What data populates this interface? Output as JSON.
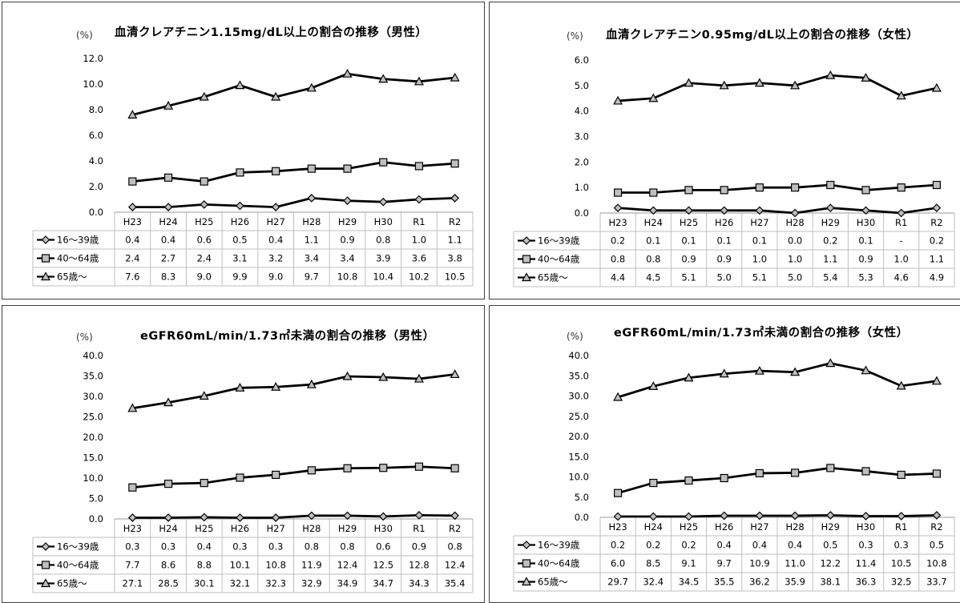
{
  "chart_data": [
    {
      "type": "line",
      "title": "血清クレアチニン1.15mg/dL以上の割合の推移（男性）",
      "unit": "(%)",
      "categories": [
        "H23",
        "H24",
        "H25",
        "H26",
        "H27",
        "H28",
        "H29",
        "H30",
        "R1",
        "R2"
      ],
      "ylim": [
        0,
        12
      ],
      "yticks": [
        "0.0",
        "2.0",
        "4.0",
        "6.0",
        "8.0",
        "10.0",
        "12.0"
      ],
      "series": [
        {
          "name": "16～39歳",
          "marker": "diamond",
          "values": [
            0.4,
            0.4,
            0.6,
            0.5,
            0.4,
            1.1,
            0.9,
            0.8,
            1.0,
            1.1
          ],
          "labels": [
            "0.4",
            "0.4",
            "0.6",
            "0.5",
            "0.4",
            "1.1",
            "0.9",
            "0.8",
            "1.0",
            "1.1"
          ]
        },
        {
          "name": "40～64歳",
          "marker": "square",
          "values": [
            2.4,
            2.7,
            2.4,
            3.1,
            3.2,
            3.4,
            3.4,
            3.9,
            3.6,
            3.8
          ],
          "labels": [
            "2.4",
            "2.7",
            "2.4",
            "3.1",
            "3.2",
            "3.4",
            "3.4",
            "3.9",
            "3.6",
            "3.8"
          ]
        },
        {
          "name": "65歳～",
          "marker": "triangle",
          "values": [
            7.6,
            8.3,
            9.0,
            9.9,
            9.0,
            9.7,
            10.8,
            10.4,
            10.2,
            10.5
          ],
          "labels": [
            "7.6",
            "8.3",
            "9.0",
            "9.9",
            "9.0",
            "9.7",
            "10.8",
            "10.4",
            "10.2",
            "10.5"
          ]
        }
      ]
    },
    {
      "type": "line",
      "title": "血清クレアチニン0.95mg/dL以上の割合の推移（女性）",
      "unit": "(%)",
      "categories": [
        "H23",
        "H24",
        "H25",
        "H26",
        "H27",
        "H28",
        "H29",
        "H30",
        "R1",
        "R2"
      ],
      "ylim": [
        0,
        6
      ],
      "yticks": [
        "0.0",
        "1.0",
        "2.0",
        "3.0",
        "4.0",
        "5.0",
        "6.0"
      ],
      "series": [
        {
          "name": "16～39歳",
          "marker": "diamond",
          "values": [
            0.2,
            0.1,
            0.1,
            0.1,
            0.1,
            0.0,
            0.2,
            0.1,
            0.0,
            0.2
          ],
          "labels": [
            "0.2",
            "0.1",
            "0.1",
            "0.1",
            "0.1",
            "0.0",
            "0.2",
            "0.1",
            "-",
            "0.2"
          ]
        },
        {
          "name": "40～64歳",
          "marker": "square",
          "values": [
            0.8,
            0.8,
            0.9,
            0.9,
            1.0,
            1.0,
            1.1,
            0.9,
            1.0,
            1.1
          ],
          "labels": [
            "0.8",
            "0.8",
            "0.9",
            "0.9",
            "1.0",
            "1.0",
            "1.1",
            "0.9",
            "1.0",
            "1.1"
          ]
        },
        {
          "name": "65歳～",
          "marker": "triangle",
          "values": [
            4.4,
            4.5,
            5.1,
            5.0,
            5.1,
            5.0,
            5.4,
            5.3,
            4.6,
            4.9
          ],
          "labels": [
            "4.4",
            "4.5",
            "5.1",
            "5.0",
            "5.1",
            "5.0",
            "5.4",
            "5.3",
            "4.6",
            "4.9"
          ]
        }
      ]
    },
    {
      "type": "line",
      "title": "eGFR60mL/min/1.73㎡未満の割合の推移（男性）",
      "unit": "(%)",
      "categories": [
        "H23",
        "H24",
        "H25",
        "H26",
        "H27",
        "H28",
        "H29",
        "H30",
        "R1",
        "R2"
      ],
      "ylim": [
        0,
        40
      ],
      "yticks": [
        "0.0",
        "5.0",
        "10.0",
        "15.0",
        "20.0",
        "25.0",
        "30.0",
        "35.0",
        "40.0"
      ],
      "series": [
        {
          "name": "16～39歳",
          "marker": "diamond",
          "values": [
            0.3,
            0.3,
            0.4,
            0.3,
            0.3,
            0.8,
            0.8,
            0.6,
            0.9,
            0.8
          ],
          "labels": [
            "0.3",
            "0.3",
            "0.4",
            "0.3",
            "0.3",
            "0.8",
            "0.8",
            "0.6",
            "0.9",
            "0.8"
          ]
        },
        {
          "name": "40～64歳",
          "marker": "square",
          "values": [
            7.7,
            8.6,
            8.8,
            10.1,
            10.8,
            11.9,
            12.4,
            12.5,
            12.8,
            12.4
          ],
          "labels": [
            "7.7",
            "8.6",
            "8.8",
            "10.1",
            "10.8",
            "11.9",
            "12.4",
            "12.5",
            "12.8",
            "12.4"
          ]
        },
        {
          "name": "65歳～",
          "marker": "triangle",
          "values": [
            27.1,
            28.5,
            30.1,
            32.1,
            32.3,
            32.9,
            34.9,
            34.7,
            34.3,
            35.4
          ],
          "labels": [
            "27.1",
            "28.5",
            "30.1",
            "32.1",
            "32.3",
            "32.9",
            "34.9",
            "34.7",
            "34.3",
            "35.4"
          ]
        }
      ]
    },
    {
      "type": "line",
      "title": "eGFR60mL/min/1.73㎡未満の割合の推移（女性）",
      "unit": "(%)",
      "categories": [
        "H23",
        "H24",
        "H25",
        "H26",
        "H27",
        "H28",
        "H29",
        "H30",
        "R1",
        "R2"
      ],
      "ylim": [
        0,
        40
      ],
      "yticks": [
        "0.0",
        "5.0",
        "10.0",
        "15.0",
        "20.0",
        "25.0",
        "30.0",
        "35.0",
        "40.0"
      ],
      "series": [
        {
          "name": "16～39歳",
          "marker": "diamond",
          "values": [
            0.2,
            0.2,
            0.2,
            0.4,
            0.4,
            0.4,
            0.5,
            0.3,
            0.3,
            0.5
          ],
          "labels": [
            "0.2",
            "0.2",
            "0.2",
            "0.4",
            "0.4",
            "0.4",
            "0.5",
            "0.3",
            "0.3",
            "0.5"
          ]
        },
        {
          "name": "40～64歳",
          "marker": "square",
          "values": [
            6.0,
            8.5,
            9.1,
            9.7,
            10.9,
            11.0,
            12.2,
            11.4,
            10.5,
            10.8
          ],
          "labels": [
            "6.0",
            "8.5",
            "9.1",
            "9.7",
            "10.9",
            "11.0",
            "12.2",
            "11.4",
            "10.5",
            "10.8"
          ]
        },
        {
          "name": "65歳～",
          "marker": "triangle",
          "values": [
            29.7,
            32.4,
            34.5,
            35.5,
            36.2,
            35.9,
            38.1,
            36.3,
            32.5,
            33.7
          ],
          "labels": [
            "29.7",
            "32.4",
            "34.5",
            "35.5",
            "36.2",
            "35.9",
            "38.1",
            "36.3",
            "32.5",
            "33.7"
          ]
        }
      ]
    }
  ]
}
